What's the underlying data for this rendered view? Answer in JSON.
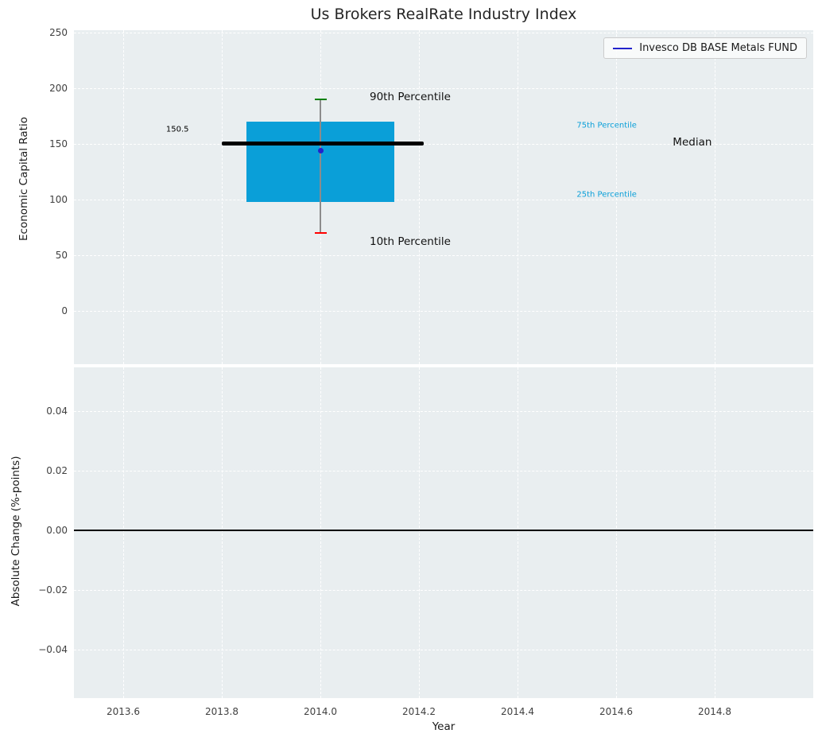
{
  "figure": {
    "title": "Us Brokers RealRate Industry Index",
    "axes_background": "#e9eef0",
    "grid_color": "#ffffff",
    "tick_color": "#404040"
  },
  "chart_data": [
    {
      "type": "boxplot",
      "title": "Us Brokers RealRate Industry Index",
      "ylabel": "Economic Capital Ratio",
      "xlabel": "",
      "xlim": [
        2013.5,
        2015.0
      ],
      "ylim": [
        -48,
        252
      ],
      "xticks": [
        2013.6,
        2013.8,
        2014.0,
        2014.2,
        2014.4,
        2014.6,
        2014.8
      ],
      "xtick_labels": [],
      "yticks": [
        0,
        50,
        100,
        150,
        200,
        250
      ],
      "ytick_labels": [
        "0",
        "50",
        "100",
        "150",
        "200",
        "250"
      ],
      "grid": true,
      "legend": {
        "position": "upper right",
        "entries": [
          {
            "label": "Invesco DB BASE Metals FUND",
            "color": "#2222cc",
            "style": "line"
          }
        ]
      },
      "box": {
        "x": 2014.0,
        "box_x_start": 2013.85,
        "box_x_end": 2014.15,
        "median_x_start": 2013.8,
        "median_x_end": 2014.21,
        "p10": 70,
        "p25": 98,
        "median": 150.5,
        "p75": 170,
        "p90": 190,
        "fund_value": 144,
        "box_color": "#0a9fd8",
        "median_color": "#000000",
        "whisker_color": "#8c8c8c",
        "p90_cap_color": "#008000",
        "p10_cap_color": "#ff0000",
        "fund_marker_color": "#2222cc"
      },
      "annotations": [
        {
          "id": "median-value",
          "text": "150.5",
          "x": 2013.71,
          "y": 163,
          "color": "#000000",
          "size": 10,
          "align": "center"
        },
        {
          "id": "p90",
          "text": "90th Percentile",
          "x": 2014.1,
          "y": 192,
          "color": "#111111",
          "size": 13.5,
          "align": "left"
        },
        {
          "id": "p10",
          "text": "10th Percentile",
          "x": 2014.1,
          "y": 62,
          "color": "#111111",
          "size": 13.5,
          "align": "left"
        },
        {
          "id": "p75",
          "text": "75th Percentile",
          "x": 2014.52,
          "y": 166,
          "color": "#0a9fd8",
          "size": 10,
          "align": "left"
        },
        {
          "id": "p25",
          "text": "25th Percentile",
          "x": 2014.52,
          "y": 104,
          "color": "#0a9fd8",
          "size": 10,
          "align": "left"
        },
        {
          "id": "median",
          "text": "Median",
          "x": 2014.715,
          "y": 151,
          "color": "#111111",
          "size": 13.5,
          "align": "left"
        }
      ]
    },
    {
      "type": "line",
      "ylabel": "Absolute Change (%-points)",
      "xlabel": "Year",
      "xlim": [
        2013.5,
        2015.0
      ],
      "ylim": [
        -0.0563,
        0.0547
      ],
      "xticks": [
        2013.6,
        2013.8,
        2014.0,
        2014.2,
        2014.4,
        2014.6,
        2014.8
      ],
      "xtick_labels": [
        "2013.6",
        "2013.8",
        "2014.0",
        "2014.2",
        "2014.4",
        "2014.6",
        "2014.8"
      ],
      "yticks": [
        -0.04,
        -0.02,
        0,
        0.02,
        0.04
      ],
      "ytick_labels": [
        "−0.04",
        "−0.02",
        "0.00",
        "0.02",
        "0.04"
      ],
      "grid": true,
      "zero_line": {
        "y": 0,
        "color": "#000000"
      }
    }
  ]
}
